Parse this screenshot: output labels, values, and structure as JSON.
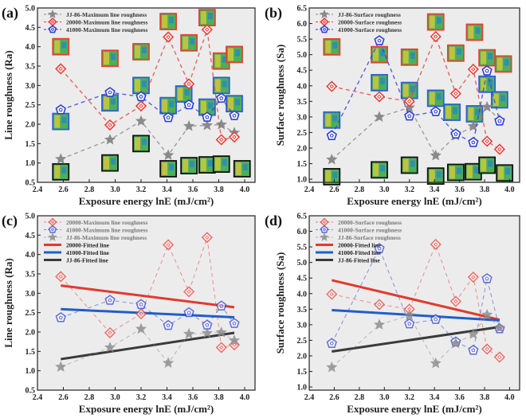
{
  "colors": {
    "jj86": "#8a8a8a",
    "p20000": "#e8403a",
    "p41000": "#2f3fd0",
    "fit20000": "#e23a2e",
    "fit41000": "#1f5fc8",
    "fitjj86": "#3a3a3a",
    "plot_bg": "#ececec"
  },
  "chart_data": [
    {
      "id": "a",
      "panel_label": "(a)",
      "type": "scatter",
      "xlabel": "Exposure energy lnE (mJ/cm²)",
      "ylabel": "Line roughness (Ra)",
      "xlim": [
        2.4,
        4.08
      ],
      "ylim": [
        0.5,
        5.0
      ],
      "xticks": [
        "2.4",
        "2.6",
        "2.8",
        "3.0",
        "3.2",
        "3.4",
        "3.6",
        "3.8",
        "4.0"
      ],
      "yticks": [
        "0.5",
        "1.0",
        "1.5",
        "2.0",
        "2.5",
        "3.0",
        "3.5",
        "4.0",
        "4.5",
        "5.0"
      ],
      "x": [
        2.58,
        2.96,
        3.2,
        3.41,
        3.57,
        3.71,
        3.82,
        3.92
      ],
      "series": [
        {
          "key": "jj86",
          "name": "JJ-86-Maximum line roughness",
          "marker": "star",
          "values": [
            1.1,
            1.6,
            2.08,
            1.2,
            1.95,
            1.97,
            1.99,
            1.78
          ]
        },
        {
          "key": "p20000",
          "name": "20000-Maximum line roughness",
          "marker": "diamond",
          "values": [
            3.43,
            1.98,
            2.47,
            4.25,
            3.04,
            4.44,
            1.6,
            1.67
          ]
        },
        {
          "key": "p41000",
          "name": "41000-Maximum line roughness",
          "marker": "pentagon",
          "values": [
            2.37,
            2.82,
            2.71,
            2.17,
            2.5,
            2.18,
            2.67,
            2.22
          ]
        }
      ],
      "legend": "top-left"
    },
    {
      "id": "b",
      "panel_label": "(b)",
      "type": "scatter",
      "xlabel": "Exposure energy lnE (mJ/cm²)",
      "ylabel": "Surface roughness (Sa)",
      "xlim": [
        2.4,
        4.08
      ],
      "ylim": [
        0.9,
        6.5
      ],
      "xticks": [
        "2.4",
        "2.6",
        "2.8",
        "3.0",
        "3.2",
        "3.4",
        "3.6",
        "3.8",
        "4.0"
      ],
      "yticks": [
        "1.0",
        "1.5",
        "2.0",
        "2.5",
        "3.0",
        "3.5",
        "4.0",
        "4.5",
        "5.0",
        "5.5",
        "6.0",
        "6.5"
      ],
      "x": [
        2.58,
        2.96,
        3.2,
        3.41,
        3.57,
        3.71,
        3.82,
        3.92
      ],
      "series": [
        {
          "key": "jj86",
          "name": "JJ-86-Surface roughness",
          "marker": "star",
          "values": [
            1.63,
            3.0,
            3.3,
            1.76,
            2.4,
            2.7,
            3.32,
            2.9
          ]
        },
        {
          "key": "p20000",
          "name": "20000-Surface roughness",
          "marker": "diamond",
          "values": [
            3.98,
            3.65,
            3.5,
            5.58,
            3.75,
            4.53,
            2.22,
            1.96
          ]
        },
        {
          "key": "p41000",
          "name": "41000-Surface roughness",
          "marker": "pentagon",
          "values": [
            2.4,
            5.45,
            3.03,
            3.17,
            2.45,
            2.18,
            4.48,
            2.87
          ]
        }
      ],
      "legend": "top-left"
    },
    {
      "id": "c",
      "panel_label": "(c)",
      "type": "line",
      "xlabel": "Exposure energy lnE (mJ/cm²)",
      "ylabel": "Line roughness (Ra)",
      "xlim": [
        2.4,
        4.08
      ],
      "ylim": [
        0.5,
        5.0
      ],
      "xticks": [
        "2.4",
        "2.6",
        "2.8",
        "3.0",
        "3.2",
        "3.4",
        "3.6",
        "3.8",
        "4.0"
      ],
      "yticks": [
        "0.5",
        "1.0",
        "1.5",
        "2.0",
        "2.5",
        "3.0",
        "3.5",
        "4.0",
        "4.5",
        "5.0"
      ],
      "x": [
        2.58,
        2.96,
        3.2,
        3.41,
        3.57,
        3.71,
        3.82,
        3.92
      ],
      "series": [
        {
          "key": "p20000",
          "name": "20000-Maximum line roughness",
          "marker": "diamond",
          "values": [
            3.43,
            1.98,
            2.47,
            4.25,
            3.04,
            4.44,
            1.6,
            1.67
          ]
        },
        {
          "key": "p41000",
          "name": "41000-Maximum line roughness",
          "marker": "pentagon",
          "values": [
            2.37,
            2.82,
            2.71,
            2.17,
            2.5,
            2.18,
            2.67,
            2.22
          ]
        },
        {
          "key": "jj86",
          "name": "JJ-86-Maximum line roughness",
          "marker": "star",
          "values": [
            1.1,
            1.6,
            2.08,
            1.2,
            1.95,
            1.97,
            1.99,
            1.78
          ]
        }
      ],
      "fits": [
        {
          "key": "fit20000",
          "name": "20000-Fitted line",
          "x": [
            2.58,
            3.92
          ],
          "y": [
            3.2,
            2.64
          ]
        },
        {
          "key": "fit41000",
          "name": "41000-Fitted line",
          "x": [
            2.58,
            3.92
          ],
          "y": [
            2.59,
            2.38
          ]
        },
        {
          "key": "fitjj86",
          "name": "JJ-86-Fitted line",
          "x": [
            2.58,
            3.92
          ],
          "y": [
            1.3,
            1.98
          ]
        }
      ],
      "legend": "top-left"
    },
    {
      "id": "d",
      "panel_label": "(d)",
      "type": "line",
      "xlabel": "Exposure energy lnE (mJ/cm²)",
      "ylabel": "Surface roughness (Sa)",
      "xlim": [
        2.4,
        4.08
      ],
      "ylim": [
        0.9,
        6.5
      ],
      "xticks": [
        "2.4",
        "2.6",
        "2.8",
        "3.0",
        "3.2",
        "3.4",
        "3.6",
        "3.8",
        "4.0"
      ],
      "yticks": [
        "1.0",
        "1.5",
        "2.0",
        "2.5",
        "3.0",
        "3.5",
        "4.0",
        "4.5",
        "5.0",
        "5.5",
        "6.0",
        "6.5"
      ],
      "x": [
        2.58,
        2.96,
        3.2,
        3.41,
        3.57,
        3.71,
        3.82,
        3.92
      ],
      "series": [
        {
          "key": "p20000",
          "name": "20000-Surface roughness",
          "marker": "diamond",
          "values": [
            3.98,
            3.65,
            3.5,
            5.58,
            3.75,
            4.53,
            2.22,
            1.96
          ]
        },
        {
          "key": "p41000",
          "name": "41000-Surface roughness",
          "marker": "pentagon",
          "values": [
            2.4,
            5.45,
            3.03,
            3.17,
            2.45,
            2.18,
            4.48,
            2.87
          ]
        },
        {
          "key": "jj86",
          "name": "JJ-86-Surface roughness",
          "marker": "star",
          "values": [
            1.63,
            3.0,
            3.3,
            1.76,
            2.4,
            2.7,
            3.32,
            2.9
          ]
        }
      ],
      "fits": [
        {
          "key": "fit20000",
          "name": "20000-Fitted line",
          "x": [
            2.58,
            3.92
          ],
          "y": [
            4.43,
            3.16
          ]
        },
        {
          "key": "fit41000",
          "name": "41000-Fitted line",
          "x": [
            2.58,
            3.92
          ],
          "y": [
            3.47,
            3.14
          ]
        },
        {
          "key": "fitjj86",
          "name": "JJ-86-Fitted line",
          "x": [
            2.58,
            3.92
          ],
          "y": [
            2.14,
            2.93
          ]
        }
      ],
      "legend": "top-left"
    }
  ]
}
